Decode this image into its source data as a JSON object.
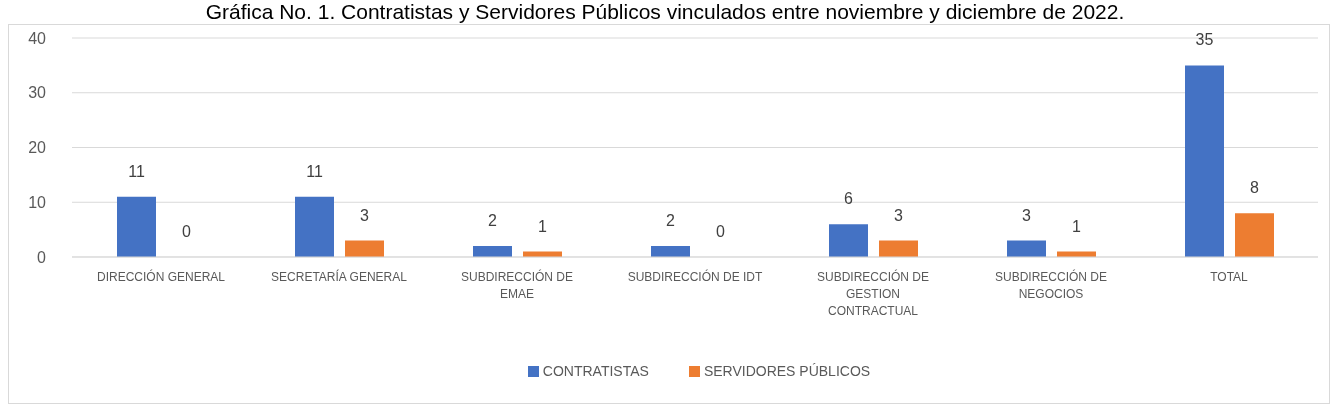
{
  "chart_data": {
    "type": "bar",
    "title": "Gráfica No. 1. Contratistas y Servidores Públicos vinculados entre noviembre y diciembre de 2022.",
    "categories": [
      "DIRECCIÓN GENERAL",
      "SECRETARÍA GENERAL",
      "SUBDIRECCIÓN DE EMAE",
      "SUBDIRECCIÓN DE IDT",
      "SUBDIRECCIÓN DE GESTION CONTRACTUAL",
      "SUBDIRECCIÓN DE NEGOCIOS",
      "TOTAL"
    ],
    "series": [
      {
        "name": "CONTRATISTAS",
        "color": "#4472c4",
        "values": [
          11,
          11,
          2,
          2,
          6,
          3,
          35
        ]
      },
      {
        "name": "SERVIDORES PÚBLICOS",
        "color": "#ed7d31",
        "values": [
          0,
          3,
          1,
          0,
          3,
          1,
          8
        ]
      }
    ],
    "ylim": [
      0,
      40
    ],
    "yticks": [
      0,
      10,
      20,
      30,
      40
    ],
    "grid": "y",
    "legend": "bottom",
    "data_labels": true
  }
}
